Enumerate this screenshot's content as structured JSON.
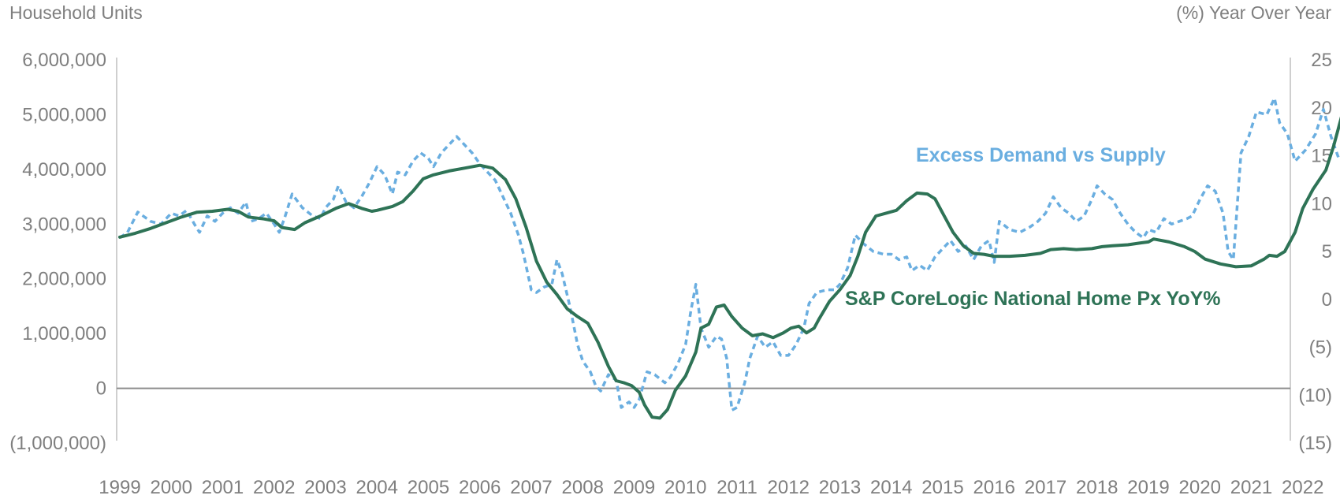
{
  "chart_data": {
    "type": "line",
    "left_axis_title": "Household Units",
    "right_axis_title": "(%) Year Over Year",
    "left_ylim": [
      -1000000,
      6000000
    ],
    "left_ticks": [
      6000000,
      5000000,
      4000000,
      3000000,
      2000000,
      1000000,
      0,
      -1000000
    ],
    "left_tick_labels": [
      "6,000,000",
      "5,000,000",
      "4,000,000",
      "3,000,000",
      "2,000,000",
      "1,000,000",
      "0",
      "(1,000,000)"
    ],
    "right_ylim": [
      -15,
      25
    ],
    "right_ticks": [
      25,
      20,
      15,
      10,
      5,
      0,
      -5,
      -10,
      -15
    ],
    "right_tick_labels": [
      "25",
      "20",
      "15",
      "10",
      "5",
      "0",
      "(5)",
      "(10)",
      "(15)"
    ],
    "x_tick_labels": [
      "1999",
      "2000",
      "2001",
      "2002",
      "2003",
      "2004",
      "2005",
      "2006",
      "2007",
      "2008",
      "2009",
      "2010",
      "2011",
      "2012",
      "2013",
      "2014",
      "2015",
      "2016",
      "2017",
      "2018",
      "2019",
      "2020",
      "2021",
      "2022"
    ],
    "grid": false,
    "series": [
      {
        "name": "Excess Demand vs Supply",
        "axis": "left",
        "color": "#6aaee0",
        "style": "dashed",
        "points": [
          [
            1999.0,
            2750000
          ],
          [
            1999.15,
            2850000
          ],
          [
            1999.35,
            3220000
          ],
          [
            1999.6,
            3050000
          ],
          [
            1999.8,
            3000000
          ],
          [
            2000.0,
            3200000
          ],
          [
            2000.15,
            3150000
          ],
          [
            2000.3,
            3250000
          ],
          [
            2000.45,
            3000000
          ],
          [
            2000.55,
            2850000
          ],
          [
            2000.7,
            3150000
          ],
          [
            2000.85,
            3050000
          ],
          [
            2001.0,
            3200000
          ],
          [
            2001.15,
            3300000
          ],
          [
            2001.3,
            3200000
          ],
          [
            2001.45,
            3400000
          ],
          [
            2001.55,
            3050000
          ],
          [
            2001.7,
            3100000
          ],
          [
            2001.85,
            3200000
          ],
          [
            2002.0,
            3000000
          ],
          [
            2002.1,
            2850000
          ],
          [
            2002.2,
            3100000
          ],
          [
            2002.35,
            3550000
          ],
          [
            2002.55,
            3300000
          ],
          [
            2002.75,
            3150000
          ],
          [
            2002.9,
            3100000
          ],
          [
            2003.0,
            3300000
          ],
          [
            2003.15,
            3450000
          ],
          [
            2003.25,
            3700000
          ],
          [
            2003.4,
            3400000
          ],
          [
            2003.55,
            3300000
          ],
          [
            2003.7,
            3500000
          ],
          [
            2003.85,
            3750000
          ],
          [
            2004.0,
            4050000
          ],
          [
            2004.15,
            3900000
          ],
          [
            2004.3,
            3550000
          ],
          [
            2004.4,
            3950000
          ],
          [
            2004.55,
            3900000
          ],
          [
            2004.7,
            4150000
          ],
          [
            2004.85,
            4300000
          ],
          [
            2005.0,
            4200000
          ],
          [
            2005.1,
            4050000
          ],
          [
            2005.25,
            4300000
          ],
          [
            2005.4,
            4450000
          ],
          [
            2005.55,
            4600000
          ],
          [
            2005.7,
            4450000
          ],
          [
            2005.85,
            4300000
          ],
          [
            2006.0,
            4100000
          ],
          [
            2006.15,
            3950000
          ],
          [
            2006.3,
            3800000
          ],
          [
            2006.45,
            3500000
          ],
          [
            2006.6,
            3200000
          ],
          [
            2006.75,
            2800000
          ],
          [
            2006.85,
            2450000
          ],
          [
            2007.0,
            1800000
          ],
          [
            2007.1,
            1750000
          ],
          [
            2007.25,
            1850000
          ],
          [
            2007.4,
            1900000
          ],
          [
            2007.5,
            2350000
          ],
          [
            2007.6,
            2100000
          ],
          [
            2007.75,
            1500000
          ],
          [
            2007.9,
            800000
          ],
          [
            2008.0,
            500000
          ],
          [
            2008.15,
            300000
          ],
          [
            2008.25,
            50000
          ],
          [
            2008.35,
            -50000
          ],
          [
            2008.5,
            250000
          ],
          [
            2008.65,
            150000
          ],
          [
            2008.75,
            -350000
          ],
          [
            2008.9,
            -250000
          ],
          [
            2009.0,
            -350000
          ],
          [
            2009.1,
            -200000
          ],
          [
            2009.25,
            300000
          ],
          [
            2009.4,
            250000
          ],
          [
            2009.6,
            100000
          ],
          [
            2009.7,
            200000
          ],
          [
            2009.85,
            450000
          ],
          [
            2010.0,
            800000
          ],
          [
            2010.1,
            1400000
          ],
          [
            2010.2,
            1900000
          ],
          [
            2010.3,
            1100000
          ],
          [
            2010.45,
            750000
          ],
          [
            2010.6,
            950000
          ],
          [
            2010.7,
            900000
          ],
          [
            2010.8,
            550000
          ],
          [
            2010.9,
            -400000
          ],
          [
            2011.0,
            -350000
          ],
          [
            2011.15,
            100000
          ],
          [
            2011.25,
            550000
          ],
          [
            2011.4,
            950000
          ],
          [
            2011.55,
            750000
          ],
          [
            2011.7,
            850000
          ],
          [
            2011.85,
            600000
          ],
          [
            2012.0,
            600000
          ],
          [
            2012.15,
            800000
          ],
          [
            2012.3,
            1100000
          ],
          [
            2012.4,
            1550000
          ],
          [
            2012.55,
            1750000
          ],
          [
            2012.75,
            1800000
          ],
          [
            2012.9,
            1800000
          ],
          [
            2013.0,
            1900000
          ],
          [
            2013.15,
            2200000
          ],
          [
            2013.3,
            2800000
          ],
          [
            2013.45,
            2650000
          ],
          [
            2013.65,
            2500000
          ],
          [
            2013.85,
            2450000
          ],
          [
            2014.0,
            2450000
          ],
          [
            2014.15,
            2350000
          ],
          [
            2014.3,
            2400000
          ],
          [
            2014.4,
            2150000
          ],
          [
            2014.55,
            2250000
          ],
          [
            2014.7,
            2150000
          ],
          [
            2014.85,
            2400000
          ],
          [
            2015.0,
            2550000
          ],
          [
            2015.15,
            2700000
          ],
          [
            2015.3,
            2500000
          ],
          [
            2015.45,
            2600000
          ],
          [
            2015.6,
            2350000
          ],
          [
            2015.75,
            2600000
          ],
          [
            2015.9,
            2700000
          ],
          [
            2016.0,
            2300000
          ],
          [
            2016.1,
            3050000
          ],
          [
            2016.3,
            2900000
          ],
          [
            2016.5,
            2850000
          ],
          [
            2016.7,
            2950000
          ],
          [
            2016.85,
            3050000
          ],
          [
            2017.0,
            3200000
          ],
          [
            2017.15,
            3500000
          ],
          [
            2017.3,
            3300000
          ],
          [
            2017.45,
            3200000
          ],
          [
            2017.6,
            3050000
          ],
          [
            2017.75,
            3150000
          ],
          [
            2017.9,
            3450000
          ],
          [
            2018.0,
            3700000
          ],
          [
            2018.15,
            3550000
          ],
          [
            2018.3,
            3450000
          ],
          [
            2018.45,
            3200000
          ],
          [
            2018.6,
            3000000
          ],
          [
            2018.75,
            2850000
          ],
          [
            2018.9,
            2750000
          ],
          [
            2019.0,
            2900000
          ],
          [
            2019.15,
            2850000
          ],
          [
            2019.3,
            3100000
          ],
          [
            2019.45,
            3000000
          ],
          [
            2019.6,
            3050000
          ],
          [
            2019.75,
            3100000
          ],
          [
            2019.85,
            3150000
          ],
          [
            2020.0,
            3450000
          ],
          [
            2020.15,
            3700000
          ],
          [
            2020.3,
            3600000
          ],
          [
            2020.45,
            3200000
          ],
          [
            2020.55,
            2500000
          ],
          [
            2020.65,
            2350000
          ],
          [
            2020.8,
            4300000
          ],
          [
            2020.95,
            4600000
          ],
          [
            2021.1,
            5050000
          ],
          [
            2021.3,
            5000000
          ],
          [
            2021.45,
            5300000
          ],
          [
            2021.55,
            4850000
          ],
          [
            2021.7,
            4650000
          ],
          [
            2021.85,
            4150000
          ],
          [
            2022.05,
            4350000
          ],
          [
            2022.25,
            4650000
          ],
          [
            2022.4,
            5100000
          ],
          [
            2022.55,
            4600000
          ],
          [
            2022.7,
            4200000
          ]
        ]
      },
      {
        "name": "S&P CoreLogic National Home Px YoY%",
        "axis": "right",
        "color": "#2e7356",
        "style": "solid",
        "points": [
          [
            1999.0,
            6.5
          ],
          [
            1999.3,
            6.9
          ],
          [
            1999.6,
            7.4
          ],
          [
            1999.9,
            8.0
          ],
          [
            2000.2,
            8.6
          ],
          [
            2000.5,
            9.1
          ],
          [
            2000.8,
            9.2
          ],
          [
            2001.1,
            9.4
          ],
          [
            2001.3,
            9.2
          ],
          [
            2001.5,
            8.6
          ],
          [
            2001.8,
            8.4
          ],
          [
            2002.0,
            8.2
          ],
          [
            2002.15,
            7.5
          ],
          [
            2002.4,
            7.3
          ],
          [
            2002.6,
            8.0
          ],
          [
            2002.9,
            8.7
          ],
          [
            2003.2,
            9.5
          ],
          [
            2003.45,
            10.0
          ],
          [
            2003.7,
            9.5
          ],
          [
            2003.9,
            9.2
          ],
          [
            2004.0,
            9.3
          ],
          [
            2004.3,
            9.7
          ],
          [
            2004.5,
            10.2
          ],
          [
            2004.7,
            11.3
          ],
          [
            2004.9,
            12.6
          ],
          [
            2005.1,
            13.0
          ],
          [
            2005.4,
            13.4
          ],
          [
            2005.7,
            13.7
          ],
          [
            2006.0,
            14.0
          ],
          [
            2006.25,
            13.7
          ],
          [
            2006.5,
            12.5
          ],
          [
            2006.7,
            10.5
          ],
          [
            2006.9,
            7.5
          ],
          [
            2007.1,
            4.0
          ],
          [
            2007.3,
            1.8
          ],
          [
            2007.5,
            0.5
          ],
          [
            2007.7,
            -1.0
          ],
          [
            2007.9,
            -1.8
          ],
          [
            2008.1,
            -2.5
          ],
          [
            2008.3,
            -4.5
          ],
          [
            2008.5,
            -7.0
          ],
          [
            2008.65,
            -8.5
          ],
          [
            2008.8,
            -8.7
          ],
          [
            2008.95,
            -9.0
          ],
          [
            2009.1,
            -9.7
          ],
          [
            2009.2,
            -11.0
          ],
          [
            2009.35,
            -12.3
          ],
          [
            2009.5,
            -12.4
          ],
          [
            2009.65,
            -11.5
          ],
          [
            2009.8,
            -9.5
          ],
          [
            2010.0,
            -8.0
          ],
          [
            2010.2,
            -5.5
          ],
          [
            2010.3,
            -3.0
          ],
          [
            2010.45,
            -2.6
          ],
          [
            2010.6,
            -0.8
          ],
          [
            2010.75,
            -0.6
          ],
          [
            2010.9,
            -1.8
          ],
          [
            2011.1,
            -3.0
          ],
          [
            2011.3,
            -3.8
          ],
          [
            2011.5,
            -3.6
          ],
          [
            2011.7,
            -4.0
          ],
          [
            2011.9,
            -3.5
          ],
          [
            2012.05,
            -3.0
          ],
          [
            2012.2,
            -2.8
          ],
          [
            2012.35,
            -3.5
          ],
          [
            2012.5,
            -3.0
          ],
          [
            2012.6,
            -2.0
          ],
          [
            2012.8,
            -0.2
          ],
          [
            2013.0,
            1.0
          ],
          [
            2013.2,
            2.5
          ],
          [
            2013.35,
            4.5
          ],
          [
            2013.5,
            7.0
          ],
          [
            2013.7,
            8.7
          ],
          [
            2013.9,
            9.0
          ],
          [
            2014.1,
            9.3
          ],
          [
            2014.3,
            10.3
          ],
          [
            2014.5,
            11.1
          ],
          [
            2014.7,
            11.0
          ],
          [
            2014.85,
            10.5
          ],
          [
            2015.0,
            9.0
          ],
          [
            2015.2,
            7.0
          ],
          [
            2015.4,
            5.6
          ],
          [
            2015.6,
            4.8
          ],
          [
            2015.8,
            4.7
          ],
          [
            2016.0,
            4.5
          ],
          [
            2016.3,
            4.5
          ],
          [
            2016.6,
            4.6
          ],
          [
            2016.9,
            4.8
          ],
          [
            2017.1,
            5.2
          ],
          [
            2017.35,
            5.3
          ],
          [
            2017.6,
            5.2
          ],
          [
            2017.9,
            5.3
          ],
          [
            2018.1,
            5.5
          ],
          [
            2018.3,
            5.6
          ],
          [
            2018.6,
            5.7
          ],
          [
            2018.85,
            5.9
          ],
          [
            2019.0,
            6.0
          ],
          [
            2019.1,
            6.3
          ],
          [
            2019.4,
            6.0
          ],
          [
            2019.7,
            5.5
          ],
          [
            2019.9,
            5.0
          ],
          [
            2020.1,
            4.2
          ],
          [
            2020.4,
            3.7
          ],
          [
            2020.7,
            3.4
          ],
          [
            2021.0,
            3.5
          ],
          [
            2021.25,
            4.2
          ],
          [
            2021.35,
            4.6
          ],
          [
            2021.5,
            4.5
          ],
          [
            2021.65,
            5.0
          ],
          [
            2021.85,
            7.0
          ],
          [
            2022.0,
            9.5
          ],
          [
            2022.2,
            11.5
          ],
          [
            2022.45,
            13.5
          ],
          [
            2022.6,
            16.0
          ],
          [
            2022.75,
            19.0
          ],
          [
            2022.85,
            20.3
          ],
          [
            2022.95,
            20.7
          ],
          [
            2023.1,
            20.0
          ],
          [
            2023.25,
            19.6
          ],
          [
            2023.4,
            19.7
          ],
          [
            2023.55,
            20.5
          ],
          [
            2023.7,
            21.2
          ]
        ]
      }
    ]
  }
}
